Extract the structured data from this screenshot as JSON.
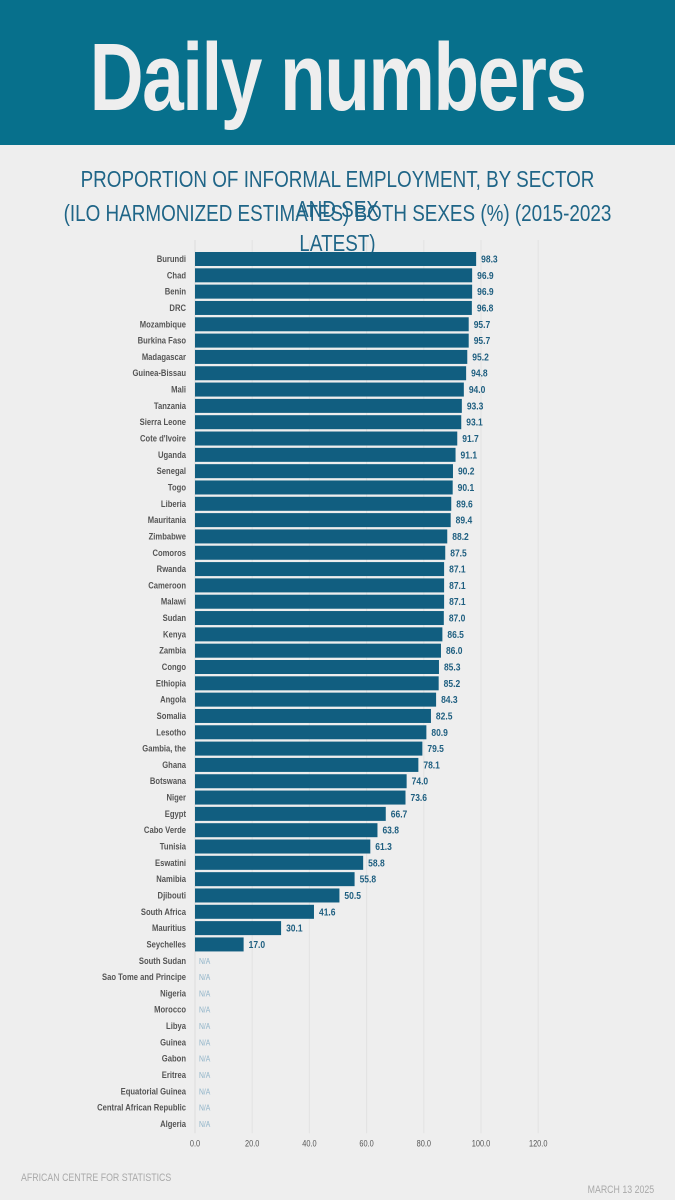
{
  "header": {
    "title": "Daily numbers",
    "subtitle_line1": "PROPORTION OF INFORMAL EMPLOYMENT, BY SECTOR AND SEX",
    "subtitle_line2": "(ILO HARMONIZED ESTIMATES) BOTH SEXES (%) (2015-2023 LATEST)"
  },
  "footer": {
    "source": "AFRICAN CENTRE FOR STATISTICS",
    "date": "MARCH 13 2025"
  },
  "colors": {
    "banner": "#07708c",
    "bar": "#115e80",
    "value_label": "#1f5f80",
    "na_label": "#8fb3c8",
    "background": "#eeeeee"
  },
  "chart_data": {
    "type": "bar",
    "orientation": "horizontal",
    "title": "Proportion of informal employment, by sector and sex (ILO harmonized estimates) both sexes (%) (2015-2023 latest)",
    "xlabel": "",
    "ylabel": "",
    "xlim": [
      0,
      120
    ],
    "xticks": [
      "0.0",
      "20.0",
      "40.0",
      "60.0",
      "80.0",
      "100.0",
      "120.0"
    ],
    "grid": true,
    "missing_label": "N/A",
    "categories": [
      "Burundi",
      "Chad",
      "Benin",
      "DRC",
      "Mozambique",
      "Burkina Faso",
      "Madagascar",
      "Guinea-Bissau",
      "Mali",
      "Tanzania",
      "Sierra Leone",
      "Cote d'Ivoire",
      "Uganda",
      "Senegal",
      "Togo",
      "Liberia",
      "Mauritania",
      "Zimbabwe",
      "Comoros",
      "Rwanda",
      "Cameroon",
      "Malawi",
      "Sudan",
      "Kenya",
      "Zambia",
      "Congo",
      "Ethiopia",
      "Angola",
      "Somalia",
      "Lesotho",
      "Gambia, the",
      "Ghana",
      "Botswana",
      "Niger",
      "Egypt",
      "Cabo Verde",
      "Tunisia",
      "Eswatini",
      "Namibia",
      "Djibouti",
      "South Africa",
      "Mauritius",
      "Seychelles",
      "South Sudan",
      "Sao Tome and Principe",
      "Nigeria",
      "Morocco",
      "Libya",
      "Guinea",
      "Gabon",
      "Eritrea",
      "Equatorial Guinea",
      "Central African Republic",
      "Algeria"
    ],
    "values": [
      98.3,
      96.9,
      96.9,
      96.8,
      95.7,
      95.7,
      95.2,
      94.8,
      94.0,
      93.3,
      93.1,
      91.7,
      91.1,
      90.2,
      90.1,
      89.6,
      89.4,
      88.2,
      87.5,
      87.1,
      87.1,
      87.1,
      87.0,
      86.5,
      86.0,
      85.3,
      85.2,
      84.3,
      82.5,
      80.9,
      79.5,
      78.1,
      74.0,
      73.6,
      66.7,
      63.8,
      61.3,
      58.8,
      55.8,
      50.5,
      41.6,
      30.1,
      17.0,
      null,
      null,
      null,
      null,
      null,
      null,
      null,
      null,
      null,
      null,
      null
    ]
  }
}
